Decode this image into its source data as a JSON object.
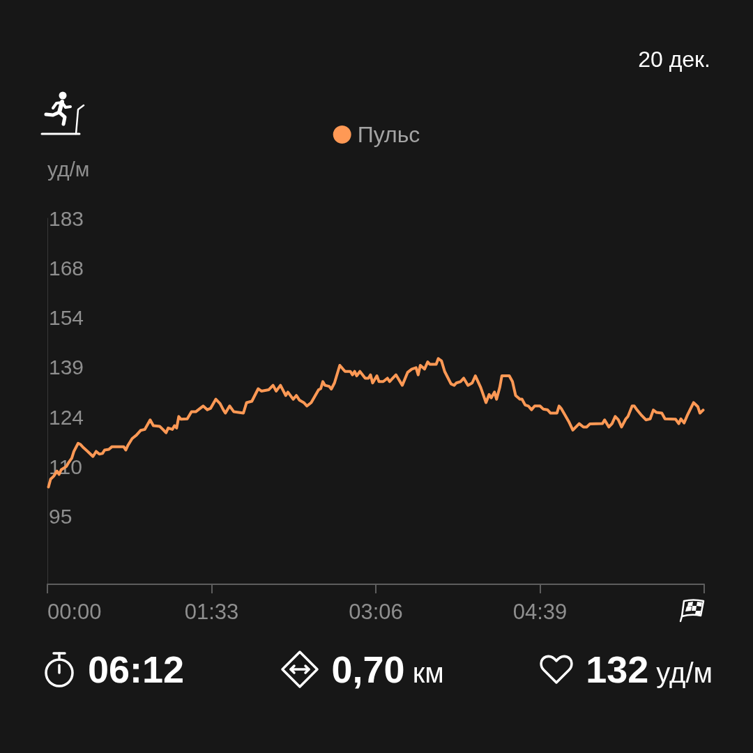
{
  "chart_data": {
    "type": "line",
    "subtitle": "20 дек.",
    "ylabel": "уд/м",
    "x": [
      0.01,
      0.03,
      0.06,
      0.09,
      0.11,
      0.13,
      0.18,
      0.2,
      0.23,
      0.25,
      0.29,
      0.31,
      0.34,
      0.38,
      0.43,
      0.46,
      0.49,
      0.52,
      0.54,
      0.58,
      0.61,
      0.72,
      0.74,
      0.76,
      0.8,
      0.84,
      0.88,
      0.92,
      0.97,
      1.0,
      1.06,
      1.09,
      1.12,
      1.14,
      1.18,
      1.2,
      1.22,
      1.24,
      1.26,
      1.32,
      1.36,
      1.4,
      1.47,
      1.51,
      1.54,
      1.59,
      1.63,
      1.66,
      1.68,
      1.72,
      1.76,
      1.85,
      1.88,
      1.93,
      1.99,
      2.02,
      2.09,
      2.13,
      2.16,
      2.2,
      2.25,
      2.27,
      2.32,
      2.35,
      2.38,
      2.42,
      2.45,
      2.49,
      2.56,
      2.58,
      2.6,
      2.62,
      2.66,
      2.68,
      2.71,
      2.76,
      2.79,
      2.81,
      2.86,
      2.88,
      2.9,
      2.92,
      2.95,
      3.0,
      3.03,
      3.05,
      3.07,
      3.11,
      3.13,
      3.17,
      3.21,
      3.23,
      3.26,
      3.29,
      3.35,
      3.4,
      3.44,
      3.48,
      3.5,
      3.52,
      3.56,
      3.59,
      3.61,
      3.67,
      3.69,
      3.72,
      3.75,
      3.81,
      3.84,
      3.86,
      3.9,
      3.93,
      3.97,
      4.01,
      4.04,
      4.09,
      4.14,
      4.17,
      4.19,
      4.22,
      4.24,
      4.27,
      4.29,
      4.36,
      4.39,
      4.42,
      4.46,
      4.48,
      4.51,
      4.54,
      4.57,
      4.6,
      4.65,
      4.68,
      4.72,
      4.75,
      4.81,
      4.83,
      4.85,
      4.92,
      4.96,
      5.02,
      5.06,
      5.09,
      5.12,
      5.24,
      5.26,
      5.3,
      5.33,
      5.36,
      5.39,
      5.42,
      5.46,
      5.48,
      5.52,
      5.54,
      5.56,
      5.61,
      5.65,
      5.69,
      5.72,
      5.75,
      5.8,
      5.83,
      5.93,
      5.96,
      5.98,
      6.01,
      6.04,
      6.1,
      6.14,
      6.16,
      6.19
    ],
    "series": [
      {
        "name": "Пульс",
        "color": "#ff9955",
        "values": [
          103.7,
          106.0,
          106.9,
          108.4,
          107.4,
          108.8,
          109.8,
          110.9,
          112.2,
          114.2,
          116.6,
          116.3,
          115.3,
          114.2,
          112.7,
          114.2,
          113.4,
          113.6,
          114.6,
          114.8,
          115.6,
          115.6,
          114.6,
          116.0,
          118.0,
          119.0,
          120.4,
          120.7,
          123.5,
          121.8,
          121.6,
          120.7,
          119.7,
          121.1,
          120.7,
          121.8,
          121.1,
          124.5,
          123.7,
          123.8,
          125.9,
          125.9,
          127.6,
          126.5,
          126.9,
          129.6,
          128.3,
          126.5,
          125.5,
          127.6,
          125.9,
          125.5,
          128.6,
          129.0,
          132.7,
          132.0,
          132.4,
          133.7,
          132.0,
          133.7,
          130.7,
          131.7,
          129.6,
          130.7,
          129.3,
          128.6,
          127.6,
          128.6,
          132.4,
          132.7,
          134.8,
          133.7,
          133.4,
          132.6,
          134.4,
          139.6,
          138.5,
          137.8,
          137.8,
          136.8,
          137.8,
          136.5,
          137.8,
          135.8,
          135.8,
          136.8,
          134.4,
          136.5,
          134.8,
          134.8,
          135.8,
          134.8,
          135.8,
          136.8,
          133.7,
          137.5,
          138.5,
          138.9,
          136.8,
          139.6,
          138.5,
          140.6,
          139.9,
          139.9,
          141.6,
          140.9,
          137.8,
          134.1,
          133.7,
          134.4,
          134.8,
          135.8,
          133.7,
          134.4,
          136.5,
          133.1,
          128.6,
          131.0,
          130.0,
          131.7,
          129.6,
          133.1,
          136.5,
          136.5,
          134.8,
          130.7,
          129.6,
          129.6,
          127.9,
          127.6,
          126.5,
          127.6,
          127.6,
          126.7,
          126.5,
          125.5,
          125.5,
          127.6,
          126.9,
          123.1,
          120.5,
          122.4,
          121.4,
          121.4,
          122.3,
          122.4,
          123.5,
          121.4,
          122.4,
          124.5,
          123.5,
          121.4,
          123.8,
          124.5,
          127.6,
          127.6,
          126.7,
          124.8,
          123.5,
          123.8,
          126.4,
          125.7,
          125.5,
          123.8,
          123.7,
          122.4,
          123.8,
          122.6,
          124.8,
          128.6,
          127.4,
          125.5,
          126.4
        ]
      }
    ],
    "xlim": [
      0,
      6.2
    ],
    "xticks": [
      {
        "value": 0,
        "label": "00:00"
      },
      {
        "value": 1.55,
        "label": "01:33"
      },
      {
        "value": 3.1,
        "label": "03:06"
      },
      {
        "value": 4.65,
        "label": "04:39"
      },
      {
        "value": 6.2,
        "label": null
      }
    ],
    "ylim": [
      75,
      183
    ],
    "yticks": [
      95,
      {
        "value": 109.67,
        "label": "110"
      },
      {
        "value": 124.33,
        "label": "124"
      },
      139,
      {
        "value": 153.67,
        "label": "154"
      },
      {
        "value": 168.33,
        "label": "168"
      },
      183
    ],
    "legend": "top",
    "marker": "none",
    "annotations": [
      "06:12",
      "0,70 км",
      "132 уд/м"
    ]
  }
}
